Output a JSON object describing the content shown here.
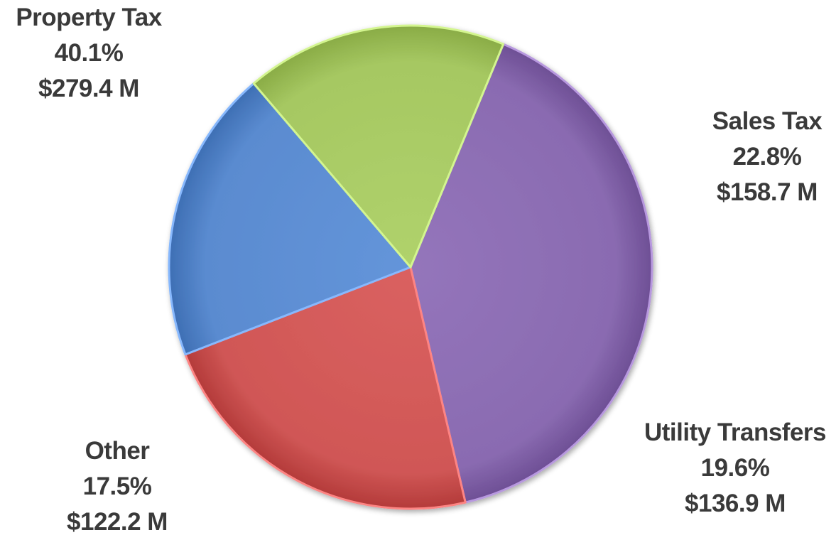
{
  "chart_data": {
    "type": "pie",
    "slices": [
      {
        "name": "Property Tax",
        "percent_label": "40.1%",
        "value_label": "$279.4 M",
        "value": 279.4,
        "percent": 40.1,
        "color": "#8a6bb1"
      },
      {
        "name": "Sales Tax",
        "percent_label": "22.8%",
        "value_label": "$158.7 M",
        "value": 158.7,
        "percent": 22.8,
        "color": "#d05756"
      },
      {
        "name": "Utility Transfers",
        "percent_label": "19.6%",
        "value_label": "$136.9 M",
        "value": 136.9,
        "percent": 19.6,
        "color": "#5a8bd0"
      },
      {
        "name": "Other",
        "percent_label": "17.5%",
        "value_label": "$122.2 M",
        "value": 122.2,
        "percent": 17.5,
        "color": "#a6c862"
      }
    ]
  }
}
